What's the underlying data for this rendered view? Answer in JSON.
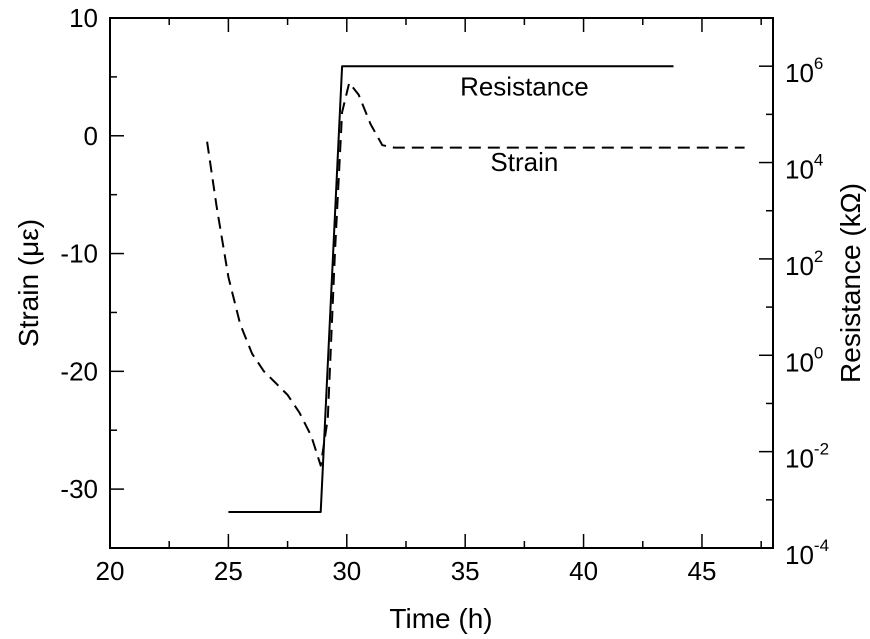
{
  "chart_data": {
    "type": "line",
    "xlabel": "Time (h)",
    "ylabel_left": "Strain (με)",
    "ylabel_right": "Resistance (kΩ)",
    "xlim": [
      20,
      48
    ],
    "ylim_left": [
      -35,
      10
    ],
    "ylim_right_log10": [
      -4,
      7
    ],
    "x_ticks": [
      20,
      25,
      30,
      35,
      40,
      45
    ],
    "x_tick_labels": [
      "20",
      "25",
      "30",
      "35",
      "40",
      "45"
    ],
    "y_left_ticks": [
      -30,
      -20,
      -10,
      0,
      10
    ],
    "y_left_tick_labels": [
      "-30",
      "-20",
      "-10",
      "0",
      "10"
    ],
    "y_right_ticks": [
      {
        "base": "10",
        "exp": "-4",
        "value": 0.0001
      },
      {
        "base": "10",
        "exp": "-2",
        "value": 0.01
      },
      {
        "base": "10",
        "exp": "0",
        "value": 1
      },
      {
        "base": "10",
        "exp": "2",
        "value": 100
      },
      {
        "base": "10",
        "exp": "4",
        "value": 10000
      },
      {
        "base": "10",
        "exp": "6",
        "value": 1000000
      }
    ],
    "grid": false,
    "series": [
      {
        "name": "Resistance",
        "axis": "right",
        "style": "solid",
        "color": "#000000",
        "x": [
          25,
          28.9,
          29.8,
          43.8
        ],
        "y": [
          0.00056,
          0.00056,
          1000000,
          1000000
        ]
      },
      {
        "name": "Strain",
        "axis": "left",
        "style": "dashed",
        "color": "#000000",
        "x": [
          24.1,
          24.5,
          25.0,
          25.5,
          26.0,
          26.5,
          27.0,
          27.5,
          28.0,
          28.5,
          28.9,
          29.2,
          29.5,
          29.8,
          30.1,
          30.5,
          31.0,
          31.5,
          32.0,
          33.0,
          35.0,
          40.0,
          45.0,
          46.8
        ],
        "y": [
          -0.5,
          -6,
          -12,
          -16,
          -18.5,
          -20,
          -21,
          -22,
          -23.5,
          -25.5,
          -28,
          -24,
          -10,
          2,
          4.5,
          3.5,
          1,
          -0.8,
          -1,
          -1,
          -1,
          -1,
          -1,
          -1
        ]
      }
    ],
    "annotations": [
      {
        "text": "Resistance",
        "x": 37.5,
        "y_left": 3.4
      },
      {
        "text": "Strain",
        "x": 37.5,
        "y_left": -3
      }
    ]
  }
}
